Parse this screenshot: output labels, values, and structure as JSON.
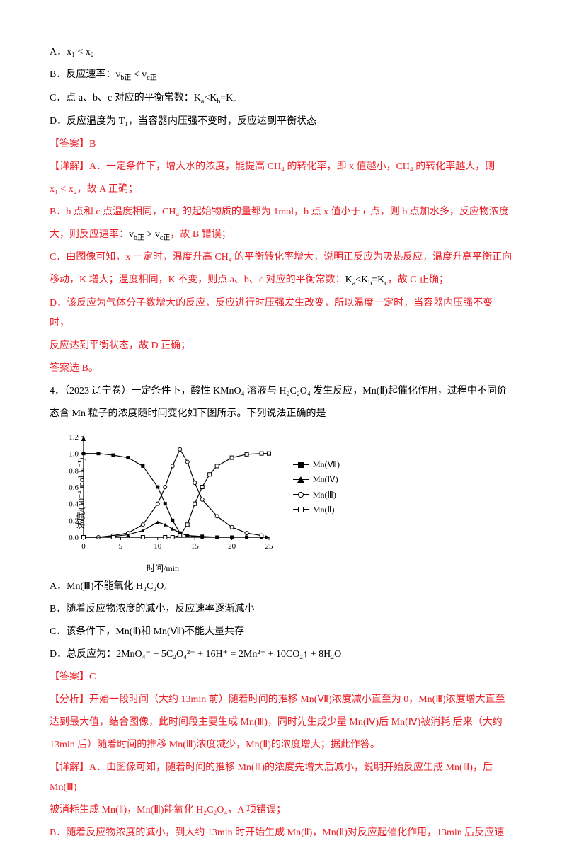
{
  "colors": {
    "text": "#000000",
    "answer": "#ed1c24",
    "bg": "#ffffff"
  },
  "lines": {
    "a1": "A．x₁ < x₂",
    "a2_pre": "B．反应速率：",
    "a2_expr": "v_{b正} < v_{c正}",
    "a3_pre": "C．点 a、b、c 对应的平衡常数：",
    "a3_expr": "K_a < K_b = K_c",
    "a4": "D．反应温度为 T₁，当容器内压强不变时，反应达到平衡状态",
    "ans1": "【答案】B",
    "d1": "【详解】A．一定条件下，增大水的浓度，能提高 CH₄ 的转化率，即 x 值越小，CH₄ 的转化率越大，则",
    "d1b": "x₁ < x₂，故 A 正确；",
    "d2": "B．b 点和 c 点温度相同，CH₄ 的起始物质的量都为 1mol，b 点 x 值小于 c 点，则 b 点加水多，反应物浓度",
    "d2b_pre": "大，则反应速率：",
    "d2b_expr": "v_{b正} > v_{c正}",
    "d2b_post": "，故 B 错误；",
    "d3": "C．由图像可知，x 一定时，温度升高 CH₄ 的平衡转化率增大，说明正反应为吸热反应，温度升高平衡正向",
    "d3b_pre": "移动，K 增大；温度相同，K 不变，则点 a、b、c 对应的平衡常数：",
    "d3b_expr": "K_a < K_b = K_c",
    "d3b_post": "，故 C 正确；",
    "d4": "D．该反应为气体分子数增大的反应，反应进行时压强发生改变，所以温度一定时，当容器内压强不变时，",
    "d4b": "反应达到平衡状态，故 D 正确；",
    "d5": "答案选 B。",
    "q4a": "4．（2023 辽宁卷）一定条件下，酸性 KMnO₄ 溶液与 H₂C₂O₄ 发生反应，Mn(Ⅱ)起催化作用，过程中不同价",
    "q4b": "态含 Mn 粒子的浓度随时间变化如下图所示。下列说法正确的是",
    "opt_a": "A．Mn(Ⅲ)不能氧化 H₂C₂O₄",
    "opt_b": "B．随着反应物浓度的减小，反应速率逐渐减小",
    "opt_c": "C．该条件下，Mn(Ⅱ)和 Mn(Ⅶ)不能大量共存",
    "opt_d": "D．总反应为：2MnO₄⁻ + 5C₂O₄²⁻ + 16H⁺ = 2Mn²⁺ + 10CO₂↑ + 8H₂O",
    "ans2": "【答案】C",
    "an1": "【分析】开始一段时间（大约 13min 前）随着时间的推移 Mn(Ⅶ)浓度减小直至为 0，Mn(Ⅲ)浓度增大直至",
    "an2": "达到最大值，结合图像，此时间段主要生成 Mn(Ⅲ)，同时先生成少量 Mn(Ⅳ)后 Mn(Ⅳ)被消耗 后来（大约",
    "an3": "13min 后）随着时间的推移 Mn(Ⅲ)浓度减少，Mn(Ⅱ)的浓度增大；据此作答。",
    "de1": "【详解】A．由图像可知，随着时间的推移 Mn(Ⅲ)的浓度先增大后减小，说明开始反应生成 Mn(Ⅲ)，后 Mn(Ⅲ)",
    "de2": "被消耗生成 Mn(Ⅱ)，Mn(Ⅲ)能氧化 H₂C₂O₄，A 项错误；",
    "de3": "B．随着反应物浓度的减小，到大约 13min 时开始生成 Mn(Ⅱ)，Mn(Ⅱ)对反应起催化作用，13min 后反应速"
  },
  "chart": {
    "type": "line",
    "xlabel": "时间/min",
    "ylabel": "浓度/(10⁻⁴ mol·L⁻¹)",
    "xlim": [
      0,
      25
    ],
    "ylim": [
      0,
      1.2
    ],
    "xticks": [
      0,
      5,
      10,
      15,
      20,
      25
    ],
    "yticks": [
      0,
      0.2,
      0.4,
      0.6,
      0.8,
      1.0,
      1.2
    ],
    "background_color": "#ffffff",
    "axis_color": "#000000",
    "line_width": 1.2,
    "marker_size": 5,
    "series": [
      {
        "name": "Mn(Ⅶ)",
        "marker": "square-filled",
        "color": "#000000",
        "points": [
          [
            0,
            1.0
          ],
          [
            2,
            1.0
          ],
          [
            4,
            0.98
          ],
          [
            6,
            0.95
          ],
          [
            8,
            0.85
          ],
          [
            10,
            0.6
          ],
          [
            11,
            0.4
          ],
          [
            12,
            0.2
          ],
          [
            13,
            0.05
          ],
          [
            14,
            0.02
          ],
          [
            16,
            0.01
          ],
          [
            18,
            0.0
          ],
          [
            20,
            0.0
          ],
          [
            22,
            0.0
          ],
          [
            24,
            0.0
          ]
        ]
      },
      {
        "name": "Mn(Ⅳ)",
        "marker": "triangle-filled",
        "color": "#000000",
        "points": [
          [
            0,
            0.0
          ],
          [
            2,
            0.0
          ],
          [
            4,
            0.01
          ],
          [
            6,
            0.03
          ],
          [
            8,
            0.08
          ],
          [
            10,
            0.18
          ],
          [
            11,
            0.15
          ],
          [
            12,
            0.1
          ],
          [
            13,
            0.05
          ],
          [
            14,
            0.02
          ],
          [
            16,
            0.0
          ],
          [
            18,
            0.0
          ],
          [
            20,
            0.0
          ]
        ]
      },
      {
        "name": "Mn(Ⅲ)",
        "marker": "circle-open",
        "color": "#000000",
        "points": [
          [
            0,
            0.0
          ],
          [
            2,
            0.0
          ],
          [
            4,
            0.02
          ],
          [
            6,
            0.05
          ],
          [
            8,
            0.15
          ],
          [
            10,
            0.4
          ],
          [
            11,
            0.6
          ],
          [
            12,
            0.85
          ],
          [
            13,
            1.05
          ],
          [
            14,
            0.9
          ],
          [
            15,
            0.65
          ],
          [
            16,
            0.45
          ],
          [
            18,
            0.25
          ],
          [
            20,
            0.12
          ],
          [
            22,
            0.05
          ],
          [
            24,
            0.02
          ]
        ]
      },
      {
        "name": "Mn(Ⅱ)",
        "marker": "square-open",
        "color": "#000000",
        "points": [
          [
            0,
            0.0
          ],
          [
            4,
            0.0
          ],
          [
            8,
            0.0
          ],
          [
            11,
            0.0
          ],
          [
            12,
            0.0
          ],
          [
            13,
            0.02
          ],
          [
            14,
            0.15
          ],
          [
            15,
            0.4
          ],
          [
            16,
            0.6
          ],
          [
            17,
            0.75
          ],
          [
            18,
            0.85
          ],
          [
            20,
            0.95
          ],
          [
            22,
            0.99
          ],
          [
            24,
            1.0
          ],
          [
            25,
            1.0
          ]
        ]
      }
    ],
    "legend": [
      "Mn(Ⅶ)",
      "Mn(Ⅳ)",
      "Mn(Ⅲ)",
      "Mn(Ⅱ)"
    ]
  }
}
